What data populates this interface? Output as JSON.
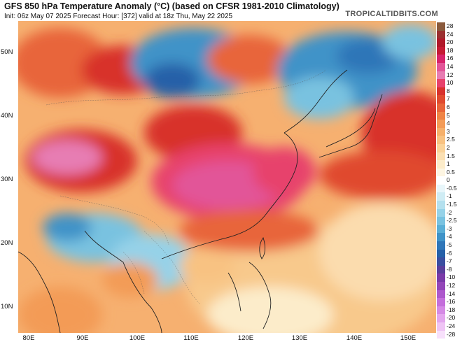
{
  "header": {
    "title": "GFS 850 hPa Temperature Anomaly (°C) (based on CFSR 1981-2010 Climatology)",
    "subtitle": "Init: 06z May 07 2025   Forecast Hour: [372]   valid at 18z Thu, May 22 2025",
    "brand": "TROPICALTIDBITS.COM"
  },
  "map": {
    "lat_labels": [
      "50N",
      "40N",
      "30N",
      "20N",
      "10N"
    ],
    "lon_labels": [
      "80E",
      "90E",
      "100E",
      "110E",
      "120E",
      "130E",
      "140E",
      "150E"
    ]
  },
  "colorbar": {
    "labels": [
      "28",
      "24",
      "20",
      "18",
      "16",
      "14",
      "12",
      "10",
      "8",
      "7",
      "6",
      "5",
      "4",
      "3",
      "2.5",
      "2",
      "1.5",
      "1",
      "0.5",
      "0",
      "-0.5",
      "-1",
      "-1.5",
      "-2",
      "-2.5",
      "-3",
      "-4",
      "-5",
      "-6",
      "-7",
      "-8",
      "-10",
      "-12",
      "-14",
      "-16",
      "-18",
      "-20",
      "-24",
      "-28"
    ],
    "colors": [
      "#8a5a3c",
      "#9a2f2f",
      "#b0182a",
      "#c51a34",
      "#d8236b",
      "#e25598",
      "#e77db3",
      "#e7426c",
      "#d8312c",
      "#e04a2f",
      "#e8653a",
      "#ef8446",
      "#f39b57",
      "#f6b06b",
      "#f8c282",
      "#fad39a",
      "#fbe0b3",
      "#fcecca",
      "#fdf5e2",
      "#ffffff",
      "#e8f6fa",
      "#cfecf4",
      "#b4e0ee",
      "#96d2e8",
      "#79c2e0",
      "#5aaed6",
      "#3f93c8",
      "#2f76b8",
      "#2560a8",
      "#3a4ea0",
      "#5a3f9c",
      "#7a3aa8",
      "#9346b8",
      "#ad58cc",
      "#c46fdb",
      "#d58ae5",
      "#e3a6ee",
      "#efc4f5",
      "#f7e0fb"
    ]
  }
}
